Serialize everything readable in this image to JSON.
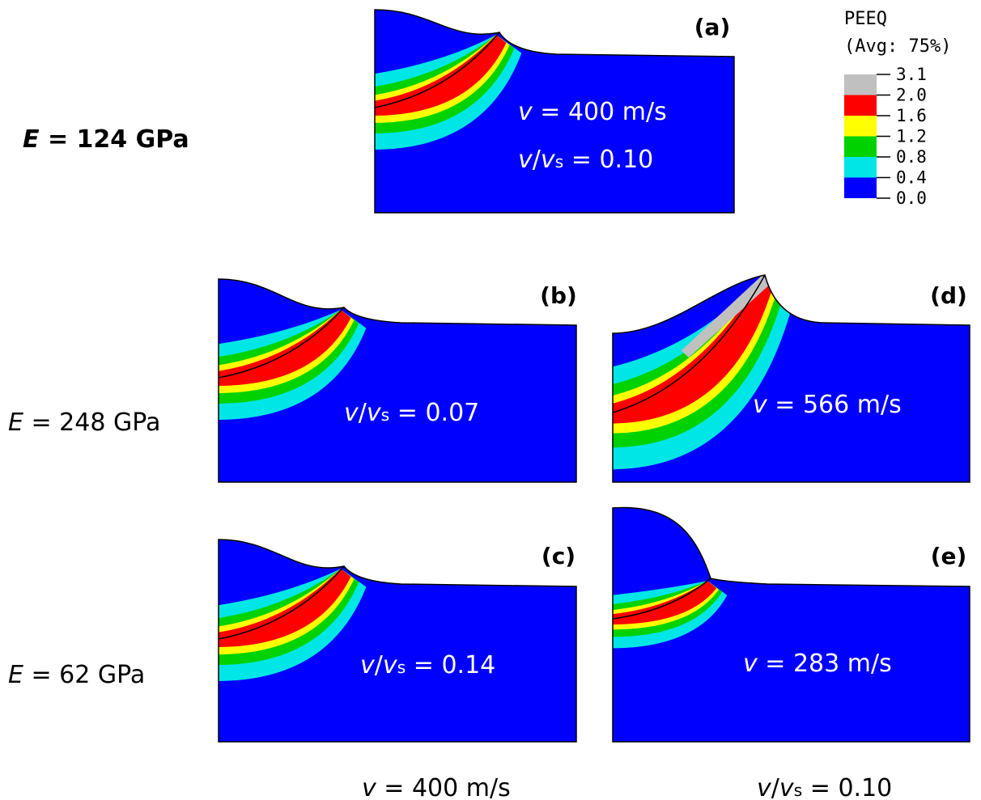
{
  "row_labels": [
    [
      {
        "text": "E",
        "style": "bold-italic"
      },
      {
        "text": " = 124 GPa",
        "style": "bold"
      }
    ],
    [
      {
        "text": "E",
        "style": "italic"
      },
      {
        "text": " = 248 GPa",
        "style": "plain"
      }
    ],
    [
      {
        "text": "E",
        "style": "italic"
      },
      {
        "text": " = 62 GPa",
        "style": "plain"
      }
    ]
  ],
  "panels": [
    {
      "tag": "(a)",
      "annotations": [
        [
          {
            "text": "v",
            "style": "italic"
          },
          {
            "text": " = 400 m/s",
            "style": "plain"
          }
        ],
        [
          {
            "text": "v",
            "style": "italic"
          },
          {
            "text": "/",
            "style": "plain"
          },
          {
            "text": "v",
            "style": "italic"
          },
          {
            "text": "s",
            "style": "sub"
          },
          {
            "text": " = 0.10",
            "style": "plain"
          }
        ]
      ]
    },
    {
      "tag": "(b)",
      "annotations": [
        [
          {
            "text": "v",
            "style": "italic"
          },
          {
            "text": "/",
            "style": "plain"
          },
          {
            "text": "v",
            "style": "italic"
          },
          {
            "text": "s",
            "style": "sub"
          },
          {
            "text": " = 0.07",
            "style": "plain"
          }
        ]
      ]
    },
    {
      "tag": "(c)",
      "annotations": [
        [
          {
            "text": "v",
            "style": "italic"
          },
          {
            "text": "/",
            "style": "plain"
          },
          {
            "text": "v",
            "style": "italic"
          },
          {
            "text": "s",
            "style": "sub"
          },
          {
            "text": " = 0.14",
            "style": "plain"
          }
        ]
      ]
    },
    {
      "tag": "(d)",
      "annotations": [
        [
          {
            "text": "v",
            "style": "italic"
          },
          {
            "text": " = 566 m/s",
            "style": "plain"
          }
        ]
      ]
    },
    {
      "tag": "(e)",
      "annotations": [
        [
          {
            "text": "v",
            "style": "italic"
          },
          {
            "text": " = 283 m/s",
            "style": "plain"
          }
        ]
      ]
    }
  ],
  "footer": [
    [
      {
        "text": "v",
        "style": "italic"
      },
      {
        "text": " = 400 m/s",
        "style": "plain"
      }
    ],
    [
      {
        "text": "v",
        "style": "italic"
      },
      {
        "text": "/",
        "style": "plain"
      },
      {
        "text": "v",
        "style": "italic"
      },
      {
        "text": "s",
        "style": "sub"
      },
      {
        "text": " = 0.10",
        "style": "plain"
      }
    ]
  ],
  "legend": {
    "title": "PEEQ",
    "subtitle": "(Avg: 75%)",
    "labels": [
      "3.1",
      "2.0",
      "1.6",
      "1.2",
      "0.8",
      "0.4",
      "0.0"
    ],
    "colors": [
      "#c0c0c0",
      "#ff0000",
      "#ffff00",
      "#00d200",
      "#00e6e6",
      "#0000ff"
    ]
  }
}
